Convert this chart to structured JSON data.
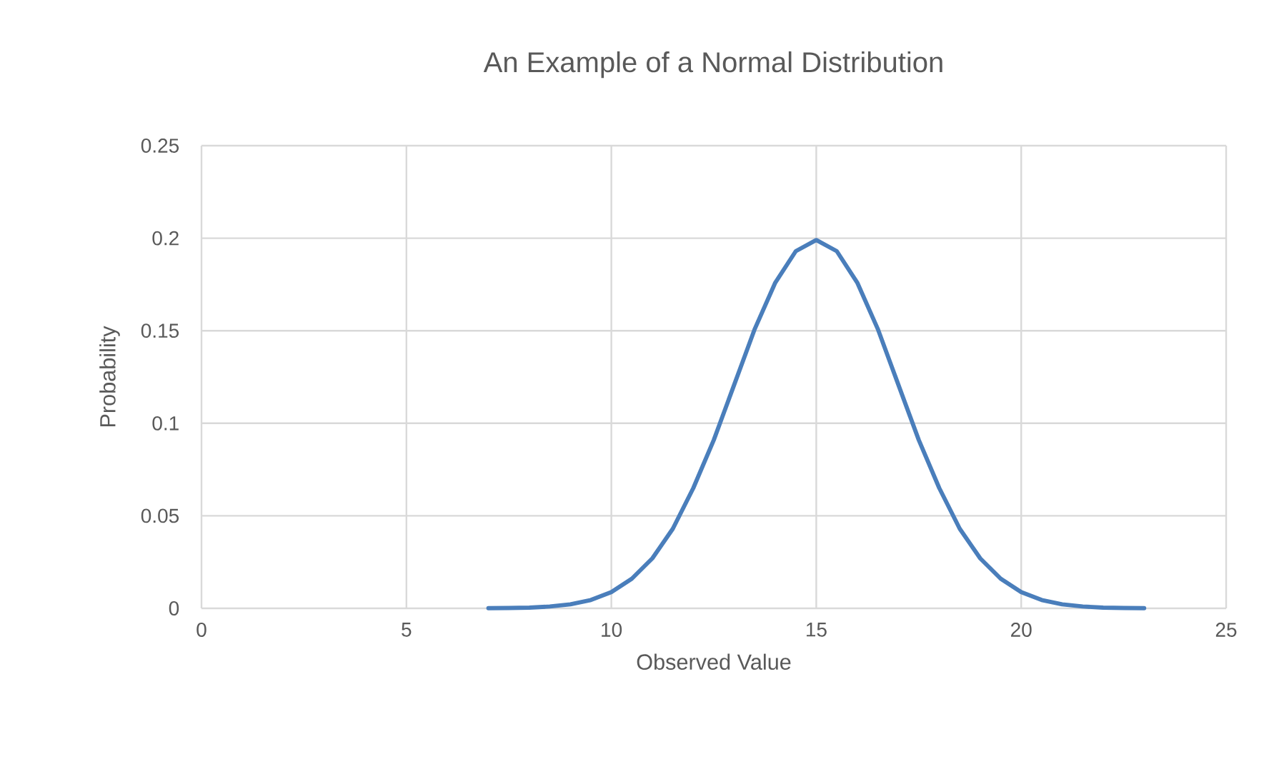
{
  "chart_data": {
    "type": "line",
    "title": "An Example of a Normal Distribution",
    "xlabel": "Observed Value",
    "ylabel": "Probability",
    "x": [
      7,
      7.5,
      8,
      8.5,
      9,
      9.5,
      10,
      10.5,
      11,
      11.5,
      12,
      12.5,
      13,
      13.5,
      14,
      14.5,
      15,
      15.5,
      16,
      16.5,
      17,
      17.5,
      18,
      18.5,
      19,
      19.5,
      20,
      20.5,
      21,
      21.5,
      22,
      22.5,
      23
    ],
    "series": [
      {
        "color": "#4a7ebb",
        "values": [
          0.0001,
          0.0002,
          0.0004,
          0.001,
          0.0022,
          0.0045,
          0.0088,
          0.016,
          0.027,
          0.043,
          0.065,
          0.091,
          0.121,
          0.151,
          0.176,
          0.193,
          0.199,
          0.193,
          0.176,
          0.151,
          0.121,
          0.091,
          0.065,
          0.043,
          0.027,
          0.016,
          0.0088,
          0.0045,
          0.0022,
          0.001,
          0.0004,
          0.0002,
          0.0001
        ]
      }
    ],
    "xlim": [
      0,
      25
    ],
    "xticks": [
      0,
      5,
      10,
      15,
      20,
      25
    ],
    "ylim": [
      0,
      0.25
    ],
    "yticks": [
      0,
      0.05,
      0.1,
      0.15,
      0.2,
      0.25
    ],
    "grid": true,
    "marker": "none",
    "line_style": "solid"
  }
}
